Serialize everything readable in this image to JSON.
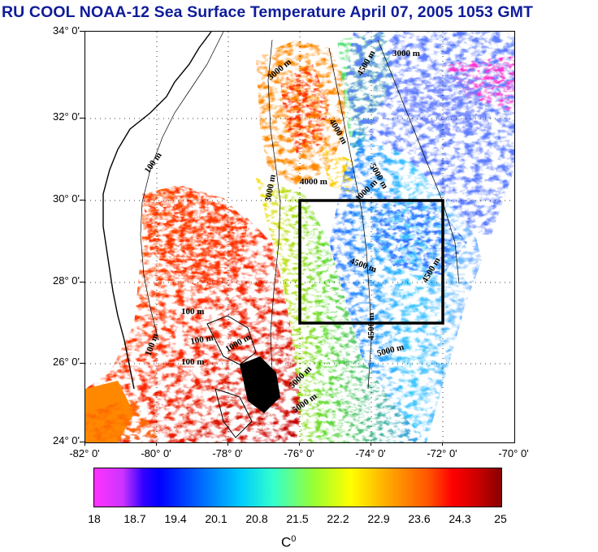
{
  "title": "RU COOL  NOAA-12 Sea Surface Temperature April 07, 2005 1053 GMT",
  "lat_ticks": [
    "34° 0'",
    "32° 0'",
    "30° 0'",
    "28° 0'",
    "26° 0'",
    "24° 0'"
  ],
  "lon_ticks": [
    "-82° 0'",
    "-80° 0'",
    "-78° 0'",
    "-76° 0'",
    "-74° 0'",
    "-72° 0'",
    "-70° 0'"
  ],
  "contour_labels": [
    "100 m",
    "100 m",
    "100 m",
    "100 m",
    "100 m",
    "1000 m",
    "3000 m",
    "3000 m",
    "4000 m",
    "4000 m",
    "4500 m",
    "4500 m",
    "5000 m",
    "5000 m",
    "5000 m",
    "3000 m",
    "5000 m",
    "4500 m",
    "4500 m",
    "4000 m"
  ],
  "colorbar": {
    "ticks": [
      "18",
      "18.7",
      "19.4",
      "20.1",
      "20.8",
      "21.5",
      "22.2",
      "22.9",
      "23.6",
      "24.3",
      "25"
    ],
    "unit_base": "C",
    "unit_sup": "0",
    "min": 18,
    "max": 25
  },
  "colors": {
    "title": "#0f1c99",
    "box": "#000000",
    "land": "#ffffff"
  },
  "region_box": {
    "lon": [
      -76,
      -72
    ],
    "lat": [
      27,
      30
    ]
  }
}
